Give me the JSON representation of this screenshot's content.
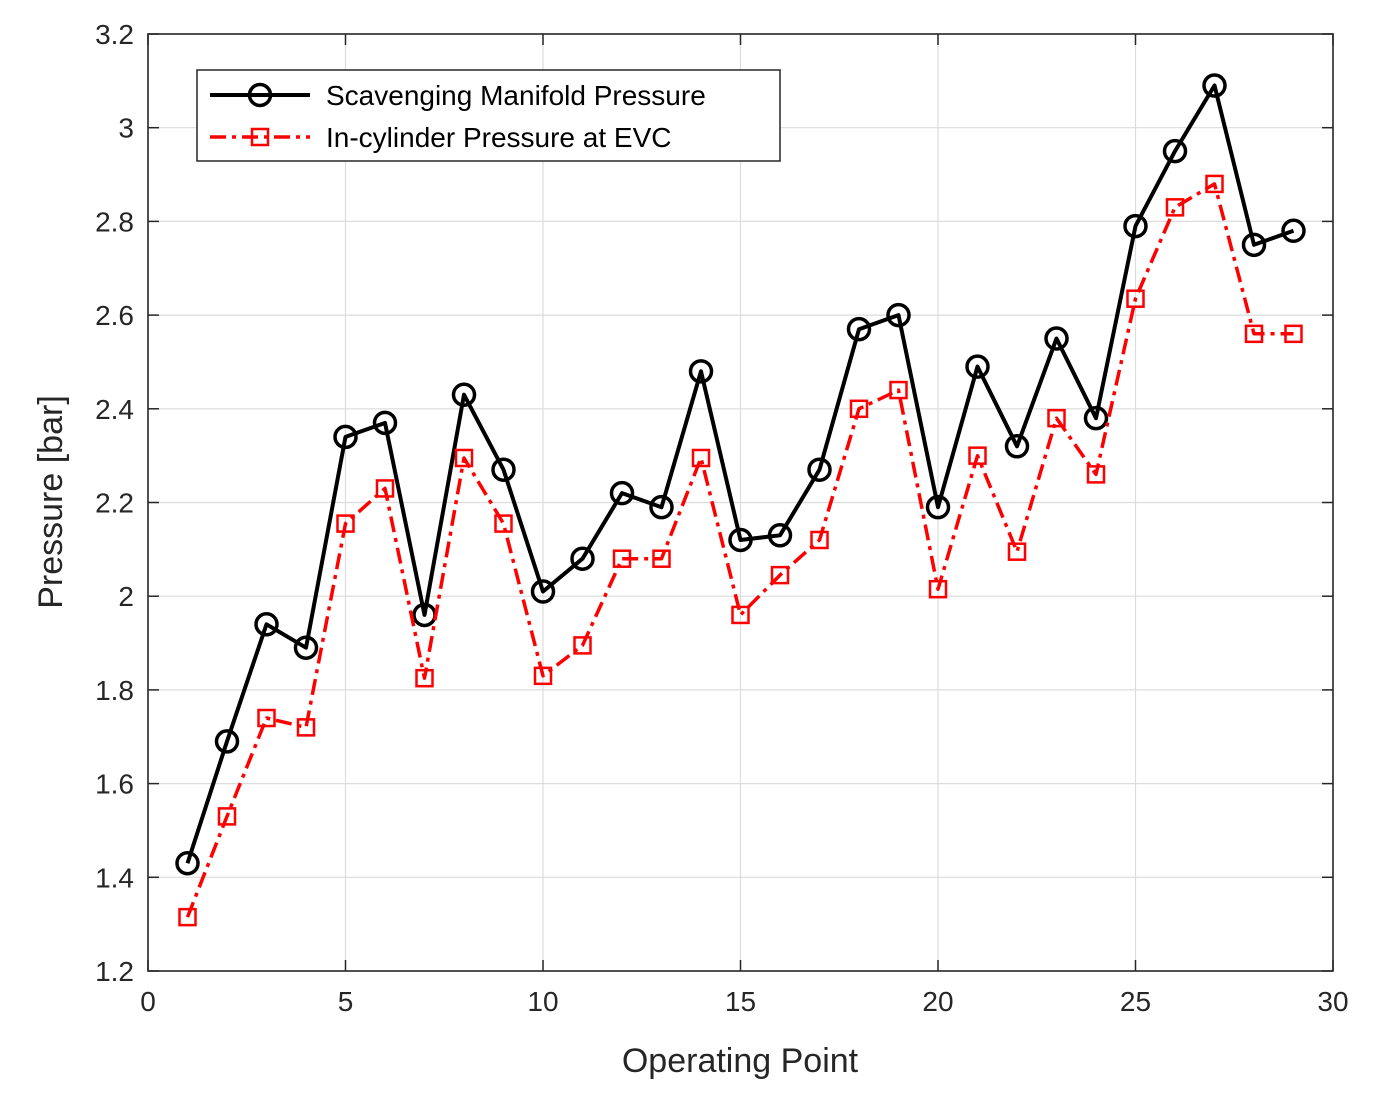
{
  "chart_data": {
    "type": "line",
    "title": "",
    "xlabel": "Operating Point",
    "ylabel": "Pressure [bar]",
    "xlim": [
      0,
      30
    ],
    "ylim": [
      1.2,
      3.2
    ],
    "grid": true,
    "legend_position": "top-left",
    "xticks": [
      0,
      5,
      10,
      15,
      20,
      25,
      30
    ],
    "xtick_labels": [
      "0",
      "5",
      "10",
      "15",
      "20",
      "25",
      "30"
    ],
    "yticks": [
      1.2,
      1.4,
      1.6,
      1.8,
      2.0,
      2.2,
      2.4,
      2.6,
      2.8,
      3.0,
      3.2
    ],
    "ytick_labels": [
      "1.2",
      "1.4",
      "1.6",
      "1.8",
      "2",
      "2.2",
      "2.4",
      "2.6",
      "2.8",
      "3",
      "3.2"
    ],
    "x": [
      1,
      2,
      3,
      4,
      5,
      6,
      7,
      8,
      9,
      10,
      11,
      12,
      13,
      14,
      15,
      16,
      17,
      18,
      19,
      20,
      21,
      22,
      23,
      24,
      25,
      26,
      27,
      28,
      29
    ],
    "series": [
      {
        "name": "Scavenging Manifold Pressure",
        "color": "#000000",
        "line_style": "solid",
        "marker": "circle",
        "values": [
          1.43,
          1.69,
          1.94,
          1.89,
          2.34,
          2.37,
          1.96,
          2.43,
          2.27,
          2.01,
          2.08,
          2.22,
          2.19,
          2.48,
          2.12,
          2.13,
          2.27,
          2.57,
          2.6,
          2.19,
          2.49,
          2.32,
          2.55,
          2.38,
          2.79,
          2.95,
          3.09,
          2.75,
          2.78
        ]
      },
      {
        "name": "In-cylinder Pressure at EVC",
        "color": "#ff0000",
        "line_style": "dashdot",
        "marker": "square",
        "values": [
          1.315,
          1.53,
          1.74,
          1.72,
          2.155,
          2.23,
          1.825,
          2.295,
          2.155,
          1.83,
          1.895,
          2.08,
          2.08,
          2.295,
          1.96,
          2.045,
          2.12,
          2.4,
          2.44,
          2.015,
          2.3,
          2.095,
          2.38,
          2.26,
          2.635,
          2.83,
          2.88,
          2.56,
          2.56
        ]
      }
    ]
  }
}
